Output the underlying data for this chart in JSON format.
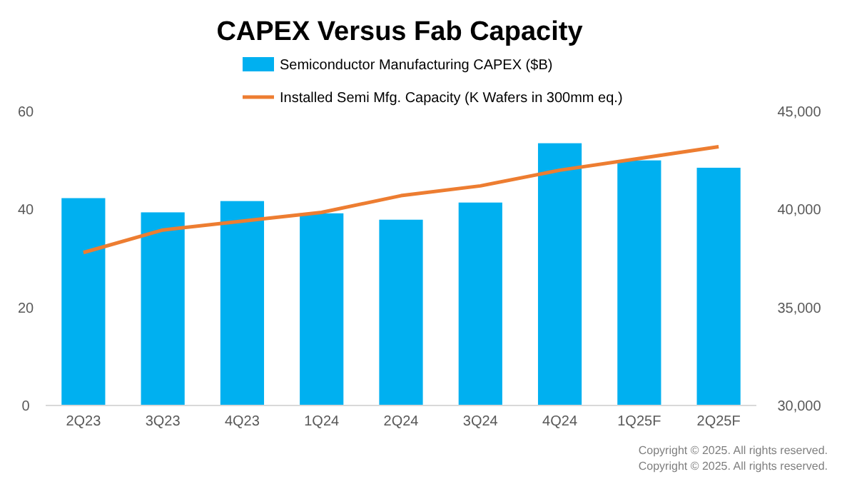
{
  "chart_data": {
    "type": "bar",
    "title": "CAPEX Versus Fab Capacity",
    "categories": [
      "2Q23",
      "3Q23",
      "4Q23",
      "1Q24",
      "2Q24",
      "3Q24",
      "4Q24",
      "1Q25F",
      "2Q25F"
    ],
    "series": [
      {
        "name": "Semiconductor Manufacturing CAPEX ($B)",
        "color": "#00b0f0",
        "values": [
          42.3,
          39.4,
          41.7,
          39.2,
          37.9,
          41.4,
          53.5,
          50,
          48.5
        ]
      },
      {
        "name": "Installed Semi Mfg. Capacity (K Wafers in 300mm eq.)",
        "type": "line",
        "axis": "y2",
        "color": "#ed7d31",
        "values": [
          37800,
          38950,
          39400,
          39850,
          40700,
          41200,
          42000,
          42600,
          43200
        ]
      }
    ],
    "ylim": [
      0,
      60
    ],
    "yticks": [
      0,
      20,
      40,
      60
    ],
    "y2lim": [
      30000,
      45000
    ],
    "y2ticks": [
      {
        "value": 30000,
        "label": "30,000"
      },
      {
        "value": 35000,
        "label": "35,000"
      },
      {
        "value": 40000,
        "label": "40,000"
      },
      {
        "value": 45000,
        "label": "45,000"
      }
    ],
    "legend": "top",
    "grid": false,
    "marker": "none",
    "annotations": [
      "Copyright © 2025. All rights reserved.",
      "Copyright © 2025. All rights reserved."
    ]
  }
}
